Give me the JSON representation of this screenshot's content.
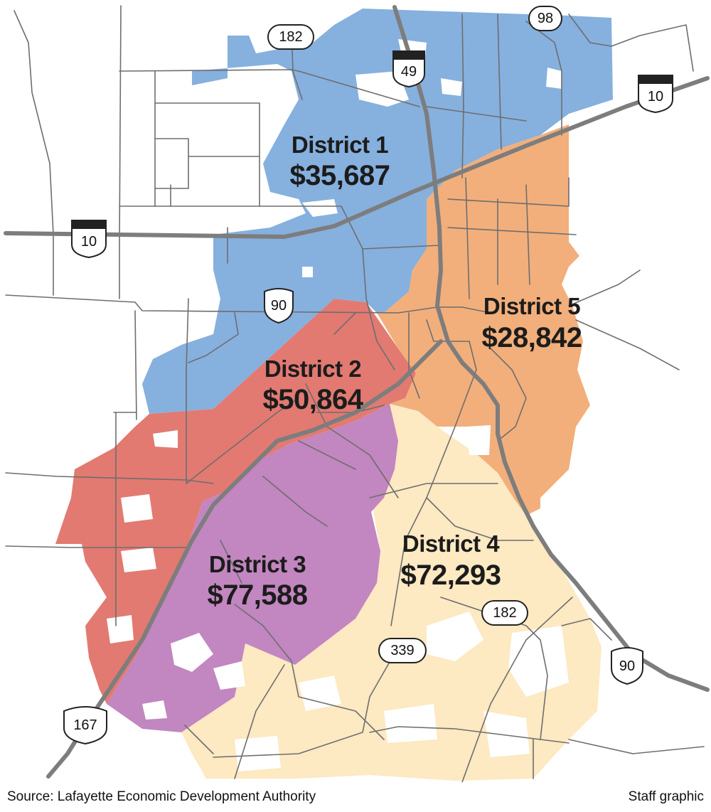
{
  "districts": [
    {
      "name": "District 1",
      "value": "$35,687",
      "color": "#86b0de"
    },
    {
      "name": "District 2",
      "value": "$50,864",
      "color": "#e27a72"
    },
    {
      "name": "District 3",
      "value": "$77,588",
      "color": "#c286c0"
    },
    {
      "name": "District 4",
      "value": "$72,293",
      "color": "#fde9c2"
    },
    {
      "name": "District 5",
      "value": "$28,842",
      "color": "#f2af7b"
    }
  ],
  "shields": {
    "i49": "49",
    "i10_east": "10",
    "i10_west": "10",
    "la182_north": "182",
    "la98": "98",
    "us90_center": "90",
    "la182_south": "182",
    "la339": "339",
    "us90_south": "90",
    "us167": "167"
  },
  "footer": {
    "source": "Source: Lafayette Economic Development Authority",
    "credit": "Staff graphic"
  }
}
